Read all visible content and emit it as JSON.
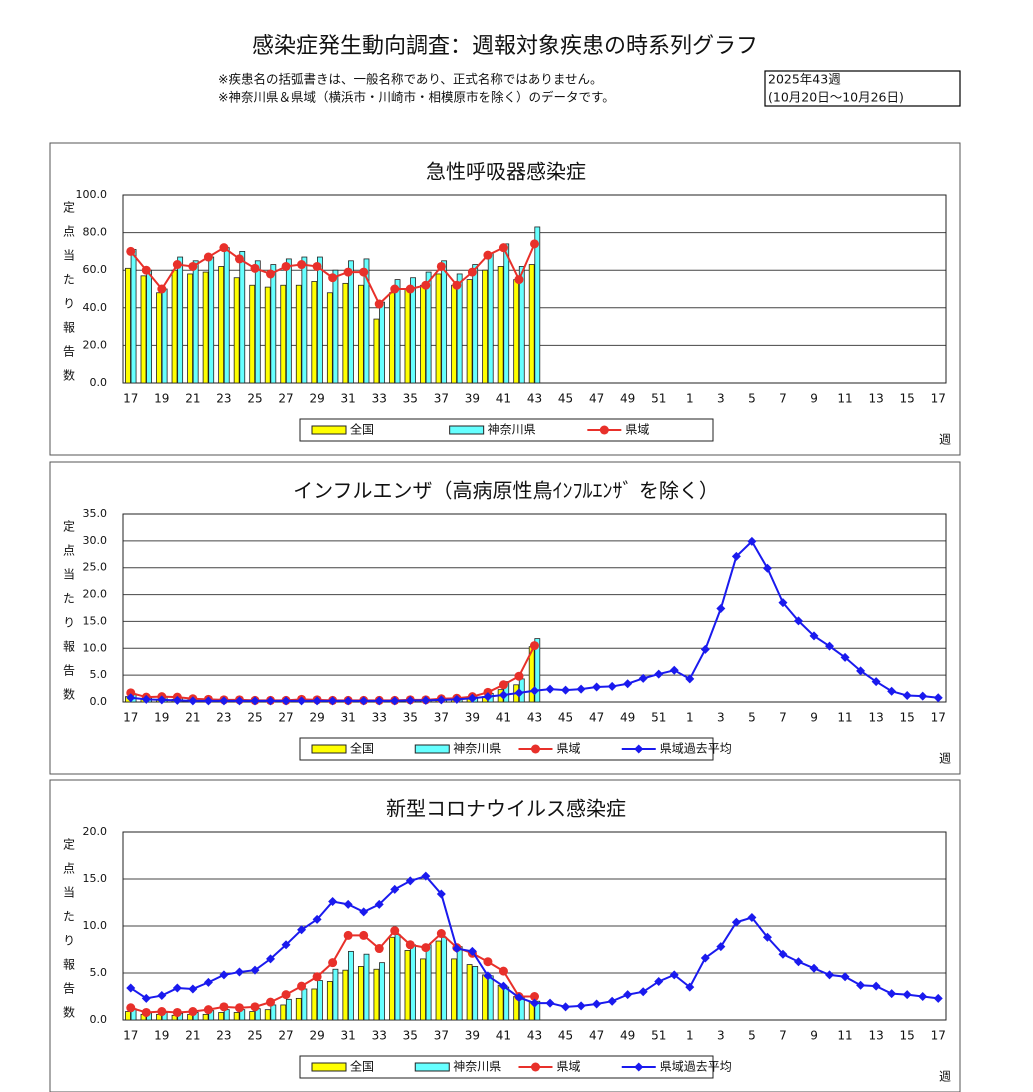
{
  "header": {
    "title": "感染症発生動向調査：週報対象疾患の時系列グラフ",
    "notes": [
      "※疾患名の括弧書きは、一般名称であり、正式名称ではありません。",
      "※神奈川県＆県域（横浜市・川崎市・相模原市を除く）のデータです。"
    ],
    "period": [
      "2025年43週",
      "(10月20日～10月26日)"
    ]
  },
  "chart_data": [
    {
      "type": "combo",
      "title": "急性呼吸器感染症",
      "ylabel": "定点当たり報告数",
      "xlabel": "週",
      "categories": [
        "17",
        null,
        "19",
        null,
        "21",
        null,
        "23",
        null,
        "25",
        null,
        "27",
        null,
        "29",
        null,
        "31",
        null,
        "33",
        null,
        "35",
        null,
        "37",
        null,
        "39",
        null,
        "41",
        null,
        "43",
        null,
        "45",
        null,
        "47",
        null,
        "49",
        null,
        "51",
        null,
        "1",
        null,
        "3",
        null,
        "5",
        null,
        "7",
        null,
        "9",
        null,
        "11",
        null,
        "13",
        null,
        "15",
        null,
        "17"
      ],
      "ylim": [
        0,
        100
      ],
      "yticks": [
        {
          "value": 0,
          "label": "0.0"
        },
        {
          "value": 20,
          "label": "20.0"
        },
        {
          "value": 40,
          "label": "40.0"
        },
        {
          "value": 60,
          "label": "60.0"
        },
        {
          "value": 80,
          "label": "80.0"
        },
        {
          "value": 100,
          "label": "100.0"
        }
      ],
      "grid": true,
      "legend": "bottom",
      "series": [
        {
          "name": "全国",
          "type": "bar",
          "color": "#ffff00",
          "values": [
            61,
            57,
            48,
            60,
            58,
            59,
            62,
            56,
            52,
            51,
            52,
            52,
            54,
            48,
            53,
            52,
            34,
            48,
            50,
            52,
            58,
            52,
            55,
            60,
            62,
            55,
            63,
            null,
            null,
            null,
            null,
            null,
            null,
            null,
            null,
            null,
            null,
            null,
            null,
            null,
            null,
            null,
            null,
            null,
            null,
            null,
            null,
            null,
            null,
            null,
            null,
            null,
            null
          ]
        },
        {
          "name": "神奈川県",
          "type": "bar",
          "color": "#66ffff",
          "values": [
            71,
            60,
            50,
            67,
            65,
            67,
            72,
            70,
            65,
            63,
            66,
            67,
            67,
            60,
            65,
            66,
            43,
            55,
            56,
            59,
            65,
            58,
            63,
            69,
            74,
            62,
            83,
            null,
            null,
            null,
            null,
            null,
            null,
            null,
            null,
            null,
            null,
            null,
            null,
            null,
            null,
            null,
            null,
            null,
            null,
            null,
            null,
            null,
            null,
            null,
            null,
            null,
            null
          ]
        },
        {
          "name": "県域",
          "type": "line",
          "marker": "circle",
          "color": "#e8302a",
          "values": [
            70,
            60,
            50,
            63,
            62,
            67,
            72,
            66,
            61,
            58,
            62,
            63,
            62,
            56,
            59,
            59,
            42,
            50,
            50,
            52,
            62,
            52,
            59,
            68,
            72,
            55,
            74,
            null,
            null,
            null,
            null,
            null,
            null,
            null,
            null,
            null,
            null,
            null,
            null,
            null,
            null,
            null,
            null,
            null,
            null,
            null,
            null,
            null,
            null,
            null,
            null,
            null,
            null
          ]
        }
      ]
    },
    {
      "type": "combo",
      "title": "インフルエンザ（高病原性鳥ｲﾝﾌﾙｴﾝｻﾞ を除く）",
      "ylabel": "定点当たり報告数",
      "xlabel": "週",
      "categories": [
        "17",
        null,
        "19",
        null,
        "21",
        null,
        "23",
        null,
        "25",
        null,
        "27",
        null,
        "29",
        null,
        "31",
        null,
        "33",
        null,
        "35",
        null,
        "37",
        null,
        "39",
        null,
        "41",
        null,
        "43",
        null,
        "45",
        null,
        "47",
        null,
        "49",
        null,
        "51",
        null,
        "1",
        null,
        "3",
        null,
        "5",
        null,
        "7",
        null,
        "9",
        null,
        "11",
        null,
        "13",
        null,
        "15",
        null,
        "17"
      ],
      "ylim": [
        0,
        35
      ],
      "yticks": [
        {
          "value": 0,
          "label": "0.0"
        },
        {
          "value": 5,
          "label": "5.0"
        },
        {
          "value": 10,
          "label": "10.0"
        },
        {
          "value": 15,
          "label": "15.0"
        },
        {
          "value": 20,
          "label": "20.0"
        },
        {
          "value": 25,
          "label": "25.0"
        },
        {
          "value": 30,
          "label": "30.0"
        },
        {
          "value": 35,
          "label": "35.0"
        }
      ],
      "grid": true,
      "legend": "bottom",
      "series": [
        {
          "name": "全国",
          "type": "bar",
          "color": "#ffff00",
          "values": [
            1.0,
            0.6,
            0.5,
            0.5,
            0.4,
            0.3,
            0.3,
            0.3,
            0.2,
            0.2,
            0.2,
            0.2,
            0.2,
            0.2,
            0.2,
            0.2,
            0.2,
            0.2,
            0.3,
            0.3,
            0.4,
            0.5,
            0.7,
            1.0,
            2.3,
            3.2,
            10.3,
            null,
            null,
            null,
            null,
            null,
            null,
            null,
            null,
            null,
            null,
            null,
            null,
            null,
            null,
            null,
            null,
            null,
            null,
            null,
            null,
            null,
            null,
            null,
            null,
            null,
            null
          ]
        },
        {
          "name": "神奈川県",
          "type": "bar",
          "color": "#66ffff",
          "values": [
            1.5,
            0.8,
            0.9,
            0.8,
            0.6,
            0.5,
            0.4,
            0.4,
            0.3,
            0.3,
            0.3,
            0.4,
            0.4,
            0.3,
            0.3,
            0.3,
            0.3,
            0.3,
            0.4,
            0.4,
            0.6,
            0.7,
            0.9,
            1.6,
            3.8,
            4.3,
            11.8,
            null,
            null,
            null,
            null,
            null,
            null,
            null,
            null,
            null,
            null,
            null,
            null,
            null,
            null,
            null,
            null,
            null,
            null,
            null,
            null,
            null,
            null,
            null,
            null,
            null,
            null
          ]
        },
        {
          "name": "県域",
          "type": "line",
          "marker": "circle",
          "color": "#e8302a",
          "values": [
            1.7,
            0.9,
            1.0,
            0.9,
            0.6,
            0.5,
            0.4,
            0.4,
            0.3,
            0.3,
            0.3,
            0.5,
            0.4,
            0.3,
            0.3,
            0.3,
            0.3,
            0.3,
            0.4,
            0.4,
            0.6,
            0.7,
            1.0,
            1.8,
            3.2,
            4.8,
            10.5,
            null,
            null,
            null,
            null,
            null,
            null,
            null,
            null,
            null,
            null,
            null,
            null,
            null,
            null,
            null,
            null,
            null,
            null,
            null,
            null,
            null,
            null,
            null,
            null,
            null,
            null
          ]
        },
        {
          "name": "県域過去平均",
          "type": "line",
          "marker": "diamond",
          "color": "#1a1aee",
          "values": [
            0.8,
            0.5,
            0.4,
            0.3,
            0.2,
            0.2,
            0.2,
            0.2,
            0.2,
            0.2,
            0.2,
            0.2,
            0.2,
            0.2,
            0.2,
            0.2,
            0.2,
            0.2,
            0.3,
            0.3,
            0.4,
            0.5,
            0.7,
            1.0,
            1.3,
            1.7,
            2.1,
            2.4,
            2.2,
            2.4,
            2.8,
            2.9,
            3.4,
            4.4,
            5.2,
            5.9,
            4.3,
            9.8,
            17.4,
            27.1,
            29.9,
            24.9,
            18.5,
            15.1,
            12.3,
            10.4,
            8.3,
            5.8,
            3.8,
            2.0,
            1.2,
            1.1,
            0.8
          ]
        }
      ]
    },
    {
      "type": "combo",
      "title": "新型コロナウイルス感染症",
      "ylabel": "定点当たり報告数",
      "xlabel": "週",
      "categories": [
        "17",
        null,
        "19",
        null,
        "21",
        null,
        "23",
        null,
        "25",
        null,
        "27",
        null,
        "29",
        null,
        "31",
        null,
        "33",
        null,
        "35",
        null,
        "37",
        null,
        "39",
        null,
        "41",
        null,
        "43",
        null,
        "45",
        null,
        "47",
        null,
        "49",
        null,
        "51",
        null,
        "1",
        null,
        "3",
        null,
        "5",
        null,
        "7",
        null,
        "9",
        null,
        "11",
        null,
        "13",
        null,
        "15",
        null,
        "17"
      ],
      "ylim": [
        0,
        20
      ],
      "yticks": [
        {
          "value": 0,
          "label": "0.0"
        },
        {
          "value": 5,
          "label": "5.0"
        },
        {
          "value": 10,
          "label": "10.0"
        },
        {
          "value": 15,
          "label": "15.0"
        },
        {
          "value": 20,
          "label": "20.0"
        }
      ],
      "grid": true,
      "legend": "bottom",
      "series": [
        {
          "name": "全国",
          "type": "bar",
          "color": "#ffff00",
          "values": [
            0.9,
            0.6,
            0.6,
            0.5,
            0.6,
            0.6,
            0.8,
            0.8,
            0.9,
            1.1,
            1.6,
            2.3,
            3.3,
            4.1,
            5.3,
            5.7,
            5.4,
            8.8,
            7.4,
            6.5,
            8.4,
            6.5,
            5.9,
            4.8,
            3.7,
            2.5,
            1.9,
            null,
            null,
            null,
            null,
            null,
            null,
            null,
            null,
            null,
            null,
            null,
            null,
            null,
            null,
            null,
            null,
            null,
            null,
            null,
            null,
            null,
            null,
            null,
            null,
            null,
            null
          ]
        },
        {
          "name": "神奈川県",
          "type": "bar",
          "color": "#66ffff",
          "values": [
            1.2,
            0.8,
            0.8,
            0.7,
            0.8,
            1.0,
            1.1,
            1.1,
            1.2,
            1.6,
            2.2,
            3.3,
            4.2,
            5.4,
            7.3,
            7.0,
            6.1,
            9.1,
            8.0,
            8.0,
            8.8,
            7.8,
            5.7,
            4.7,
            3.5,
            2.4,
            2.0,
            null,
            null,
            null,
            null,
            null,
            null,
            null,
            null,
            null,
            null,
            null,
            null,
            null,
            null,
            null,
            null,
            null,
            null,
            null,
            null,
            null,
            null,
            null,
            null,
            null,
            null
          ]
        },
        {
          "name": "県域",
          "type": "line",
          "marker": "circle",
          "color": "#e8302a",
          "values": [
            1.3,
            0.8,
            0.9,
            0.8,
            0.9,
            1.1,
            1.4,
            1.3,
            1.4,
            1.9,
            2.7,
            3.6,
            4.6,
            6.1,
            9.0,
            9.0,
            7.6,
            9.5,
            8.0,
            7.7,
            9.2,
            7.7,
            7.1,
            6.2,
            5.2,
            2.5,
            2.5,
            null,
            null,
            null,
            null,
            null,
            null,
            null,
            null,
            null,
            null,
            null,
            null,
            null,
            null,
            null,
            null,
            null,
            null,
            null,
            null,
            null,
            null,
            null,
            null,
            null,
            null
          ]
        },
        {
          "name": "県域過去平均",
          "type": "line",
          "marker": "diamond",
          "color": "#1a1aee",
          "values": [
            3.4,
            2.3,
            2.6,
            3.4,
            3.3,
            4.0,
            4.8,
            5.1,
            5.3,
            6.5,
            8.0,
            9.6,
            10.7,
            12.6,
            12.3,
            11.5,
            12.3,
            13.9,
            14.8,
            15.3,
            13.4,
            7.6,
            7.3,
            4.7,
            3.6,
            2.4,
            1.8,
            1.8,
            1.4,
            1.5,
            1.7,
            2.0,
            2.7,
            3.0,
            4.1,
            4.8,
            3.5,
            6.6,
            7.8,
            10.4,
            10.9,
            8.8,
            7.0,
            6.2,
            5.5,
            4.8,
            4.6,
            3.7,
            3.6,
            2.8,
            2.7,
            2.5,
            2.3
          ]
        }
      ]
    }
  ]
}
